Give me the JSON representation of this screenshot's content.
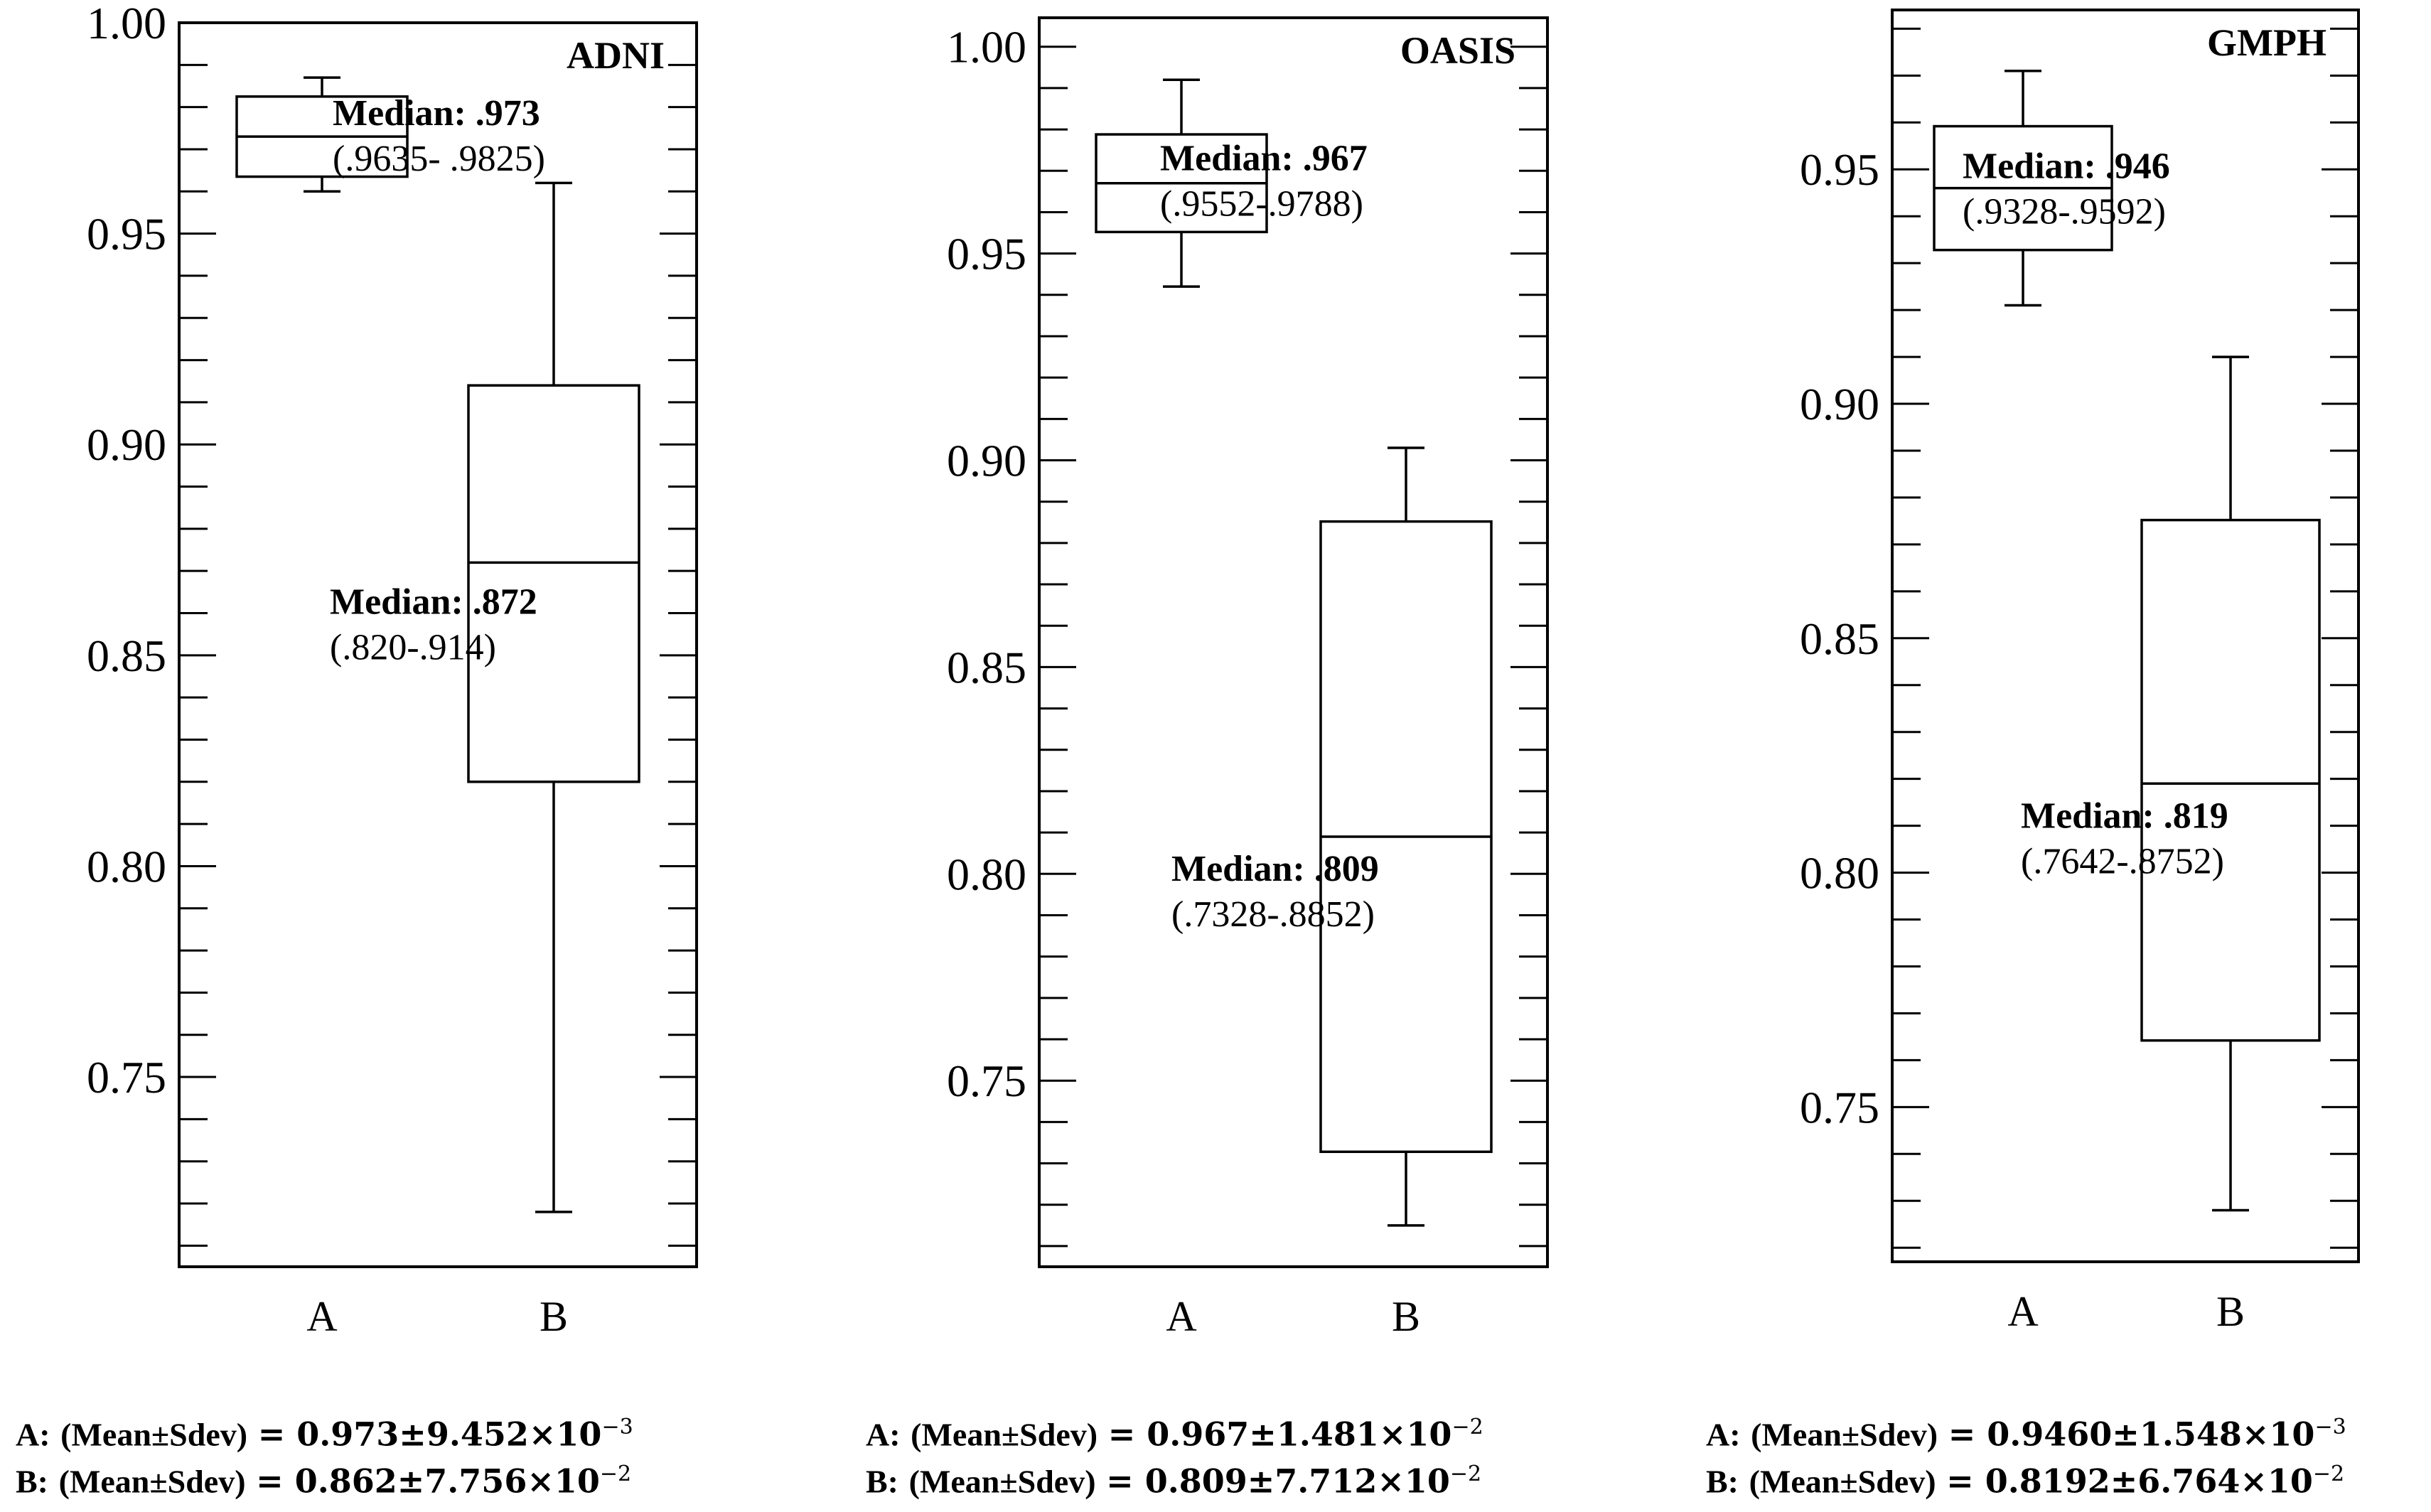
{
  "chart_data": [
    {
      "type": "box",
      "title": "ADNI",
      "categories": [
        "A",
        "B"
      ],
      "ylim": [
        0.705,
        1.0
      ],
      "yticks": [
        "1.00",
        "0.95",
        "0.90",
        "0.85",
        "0.80",
        "0.75"
      ],
      "ytick_values": [
        1.0,
        0.95,
        0.9,
        0.85,
        0.8,
        0.75
      ],
      "boxes": [
        {
          "category": "A",
          "whisker_low": 0.96,
          "q1": 0.9635,
          "median": 0.973,
          "q3": 0.9825,
          "whisker_high": 0.987,
          "median_label": "Median: .973",
          "range_label": "(.9635- .9825)"
        },
        {
          "category": "B",
          "whisker_low": 0.718,
          "q1": 0.82,
          "median": 0.872,
          "q3": 0.914,
          "whisker_high": 0.962,
          "median_label": "Median: .872",
          "range_label": "(.820-.914)"
        }
      ],
      "stats": [
        {
          "prefix": "A:",
          "label": "(Mean±Sdev)",
          "value": "= 0.973±9.452×10",
          "exp": "−3"
        },
        {
          "prefix": "B:",
          "label": "(Mean±Sdev)",
          "value": "= 0.862±7.756×10",
          "exp": "−2"
        }
      ]
    },
    {
      "type": "box",
      "title": "OASIS",
      "categories": [
        "A",
        "B"
      ],
      "ylim": [
        0.705,
        1.007
      ],
      "yticks": [
        "1.00",
        "0.95",
        "0.90",
        "0.85",
        "0.80",
        "0.75"
      ],
      "ytick_values": [
        1.0,
        0.95,
        0.9,
        0.85,
        0.8,
        0.75
      ],
      "boxes": [
        {
          "category": "A",
          "whisker_low": 0.942,
          "q1": 0.9552,
          "median": 0.967,
          "q3": 0.9788,
          "whisker_high": 0.992,
          "median_label": "Median: .967",
          "range_label": "(.9552-.9788)"
        },
        {
          "category": "B",
          "whisker_low": 0.715,
          "q1": 0.7328,
          "median": 0.809,
          "q3": 0.8852,
          "whisker_high": 0.903,
          "median_label": "Median: .809",
          "range_label": "(.7328-.8852)"
        }
      ],
      "stats": [
        {
          "prefix": "A:",
          "label": "(Mean±Sdev)",
          "value": "= 0.967±1.481×10",
          "exp": "−2"
        },
        {
          "prefix": "B:",
          "label": "(Mean±Sdev)",
          "value": "= 0.809±7.712×10",
          "exp": "−2"
        }
      ]
    },
    {
      "type": "box",
      "title": "GMPH",
      "categories": [
        "A",
        "B"
      ],
      "ylim": [
        0.717,
        0.984
      ],
      "yticks": [
        "0.95",
        "0.90",
        "0.85",
        "0.80",
        "0.75"
      ],
      "ytick_values": [
        0.95,
        0.9,
        0.85,
        0.8,
        0.75
      ],
      "boxes": [
        {
          "category": "A",
          "whisker_low": 0.921,
          "q1": 0.9328,
          "median": 0.946,
          "q3": 0.9592,
          "whisker_high": 0.971,
          "median_label": "Median: .946",
          "range_label": "(.9328-.9592)"
        },
        {
          "category": "B",
          "whisker_low": 0.728,
          "q1": 0.7642,
          "median": 0.819,
          "q3": 0.8752,
          "whisker_high": 0.91,
          "median_label": "Median: .819",
          "range_label": "(.7642-.8752)"
        }
      ],
      "stats": [
        {
          "prefix": "A:",
          "label": "(Mean±Sdev)",
          "value": "= 0.9460±1.548×10",
          "exp": "−3"
        },
        {
          "prefix": "B:",
          "label": "(Mean±Sdev)",
          "value": "= 0.8192±6.764×10",
          "exp": "−2"
        }
      ]
    }
  ]
}
